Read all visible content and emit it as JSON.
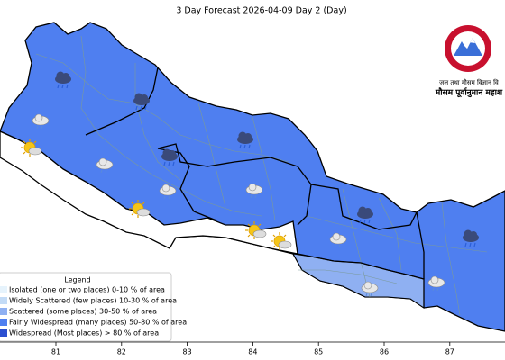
{
  "title": "3 Day Forecast 2026-04-09 Day 2 (Day)",
  "logo": {
    "line1": "जल तथा मौसम विज्ञान वि",
    "line2": "मौसम पूर्वानुमान महाश"
  },
  "legend": {
    "title": "Legend",
    "items": [
      {
        "label": "Isolated (one or two places)  0-10 % of area",
        "color": "#e6f3fc"
      },
      {
        "label": "Widely Scattered (few places)  10-30 % of area",
        "color": "#c3dbf6"
      },
      {
        "label": "Scattered (some places)  30-50 % of area",
        "color": "#8fb0f2"
      },
      {
        "label": "Fairly Widespread (many places)  50-80 % of area",
        "color": "#4f7ff0"
      },
      {
        "label": "Widespread (Most places) > 80 % of area",
        "color": "#2b4fd0"
      }
    ]
  },
  "axis": {
    "xticks": [
      81,
      82,
      83,
      84,
      85,
      86,
      87
    ]
  }
}
